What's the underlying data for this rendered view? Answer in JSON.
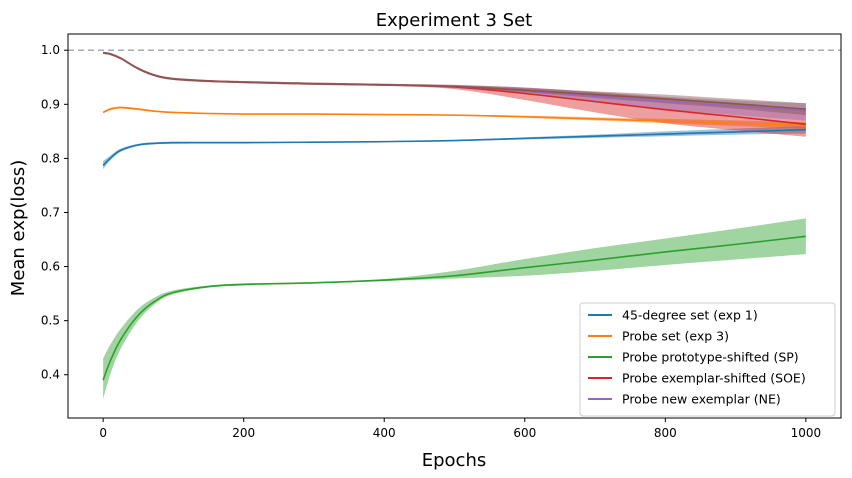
{
  "chart_data": {
    "type": "line",
    "title": "Experiment 3 Set",
    "xlabel": "Epochs",
    "ylabel": "Mean exp(loss)",
    "xlim": [
      -50,
      1050
    ],
    "ylim": [
      0.32,
      1.03
    ],
    "xticks": [
      0,
      200,
      400,
      600,
      800,
      1000
    ],
    "yticks": [
      0.4,
      0.5,
      0.6,
      0.7,
      0.8,
      0.9,
      1.0
    ],
    "xtick_labels": [
      "0",
      "200",
      "400",
      "600",
      "800",
      "1000"
    ],
    "ytick_labels": [
      "0.4",
      "0.5",
      "0.6",
      "0.7",
      "0.8",
      "0.9",
      "1.0"
    ],
    "reference_line": {
      "y": 1.0,
      "style": "dashed",
      "color": "#aaaaaa"
    },
    "grid": false,
    "legend_position": "lower-right",
    "x": [
      0,
      10,
      25,
      50,
      75,
      100,
      150,
      200,
      300,
      400,
      500,
      600,
      700,
      800,
      900,
      1000
    ],
    "series": [
      {
        "name": "45-degree set (exp 1)",
        "color": "#1f77b4",
        "values": [
          0.787,
          0.8,
          0.815,
          0.825,
          0.828,
          0.829,
          0.829,
          0.829,
          0.83,
          0.831,
          0.833,
          0.837,
          0.841,
          0.845,
          0.849,
          0.853
        ],
        "lower": [
          0.78,
          0.796,
          0.812,
          0.823,
          0.826,
          0.827,
          0.828,
          0.828,
          0.829,
          0.83,
          0.832,
          0.835,
          0.838,
          0.841,
          0.844,
          0.846
        ],
        "upper": [
          0.795,
          0.805,
          0.818,
          0.827,
          0.83,
          0.831,
          0.831,
          0.831,
          0.831,
          0.832,
          0.834,
          0.839,
          0.844,
          0.85,
          0.855,
          0.86
        ]
      },
      {
        "name": "Probe set (exp 3)",
        "color": "#ff7f0e",
        "values": [
          0.885,
          0.891,
          0.894,
          0.891,
          0.887,
          0.885,
          0.883,
          0.882,
          0.882,
          0.881,
          0.88,
          0.877,
          0.873,
          0.869,
          0.865,
          0.861
        ],
        "lower": [
          0.883,
          0.889,
          0.892,
          0.889,
          0.886,
          0.884,
          0.882,
          0.881,
          0.881,
          0.88,
          0.879,
          0.875,
          0.87,
          0.865,
          0.86,
          0.855
        ],
        "upper": [
          0.887,
          0.893,
          0.896,
          0.893,
          0.888,
          0.886,
          0.884,
          0.883,
          0.883,
          0.882,
          0.881,
          0.879,
          0.876,
          0.873,
          0.87,
          0.867
        ]
      },
      {
        "name": "Probe prototype-shifted (SP)",
        "color": "#2ca02c",
        "values": [
          0.39,
          0.425,
          0.465,
          0.51,
          0.537,
          0.552,
          0.563,
          0.567,
          0.57,
          0.575,
          0.583,
          0.598,
          0.612,
          0.627,
          0.641,
          0.656
        ],
        "lower": [
          0.355,
          0.4,
          0.448,
          0.5,
          0.532,
          0.549,
          0.561,
          0.565,
          0.569,
          0.573,
          0.578,
          0.583,
          0.592,
          0.603,
          0.613,
          0.623
        ],
        "upper": [
          0.43,
          0.455,
          0.485,
          0.522,
          0.544,
          0.556,
          0.565,
          0.569,
          0.571,
          0.577,
          0.592,
          0.614,
          0.634,
          0.652,
          0.67,
          0.689
        ]
      },
      {
        "name": "Probe exemplar-shifted (SOE)",
        "color": "#d62728",
        "values": [
          0.995,
          0.993,
          0.985,
          0.966,
          0.953,
          0.947,
          0.943,
          0.941,
          0.938,
          0.936,
          0.932,
          0.92,
          0.905,
          0.89,
          0.877,
          0.863
        ],
        "lower": [
          0.993,
          0.991,
          0.983,
          0.964,
          0.951,
          0.945,
          0.941,
          0.939,
          0.936,
          0.934,
          0.928,
          0.908,
          0.885,
          0.865,
          0.852,
          0.84
        ],
        "upper": [
          0.997,
          0.995,
          0.987,
          0.968,
          0.955,
          0.949,
          0.945,
          0.943,
          0.94,
          0.938,
          0.936,
          0.931,
          0.922,
          0.912,
          0.9,
          0.888
        ]
      },
      {
        "name": "Probe new exemplar (NE)",
        "color": "#9467bd",
        "values": [
          0.995,
          0.993,
          0.985,
          0.966,
          0.953,
          0.947,
          0.943,
          0.941,
          0.938,
          0.936,
          0.933,
          0.925,
          0.915,
          0.905,
          0.897,
          0.888
        ],
        "lower": [
          0.993,
          0.991,
          0.983,
          0.964,
          0.951,
          0.945,
          0.941,
          0.939,
          0.936,
          0.934,
          0.93,
          0.919,
          0.905,
          0.891,
          0.88,
          0.87
        ],
        "upper": [
          0.997,
          0.995,
          0.987,
          0.968,
          0.955,
          0.949,
          0.945,
          0.943,
          0.94,
          0.938,
          0.936,
          0.931,
          0.923,
          0.914,
          0.907,
          0.902
        ]
      },
      {
        "name": "",
        "color": "#8c564b",
        "values": [
          0.995,
          0.993,
          0.985,
          0.966,
          0.953,
          0.947,
          0.943,
          0.941,
          0.938,
          0.936,
          0.933,
          0.926,
          0.918,
          0.91,
          0.901,
          0.891
        ],
        "lower": [
          0.993,
          0.991,
          0.983,
          0.964,
          0.951,
          0.945,
          0.941,
          0.939,
          0.936,
          0.934,
          0.931,
          0.922,
          0.912,
          0.902,
          0.892,
          0.88
        ],
        "upper": [
          0.997,
          0.995,
          0.987,
          0.968,
          0.955,
          0.949,
          0.945,
          0.943,
          0.94,
          0.938,
          0.935,
          0.93,
          0.924,
          0.918,
          0.91,
          0.902
        ]
      }
    ]
  }
}
